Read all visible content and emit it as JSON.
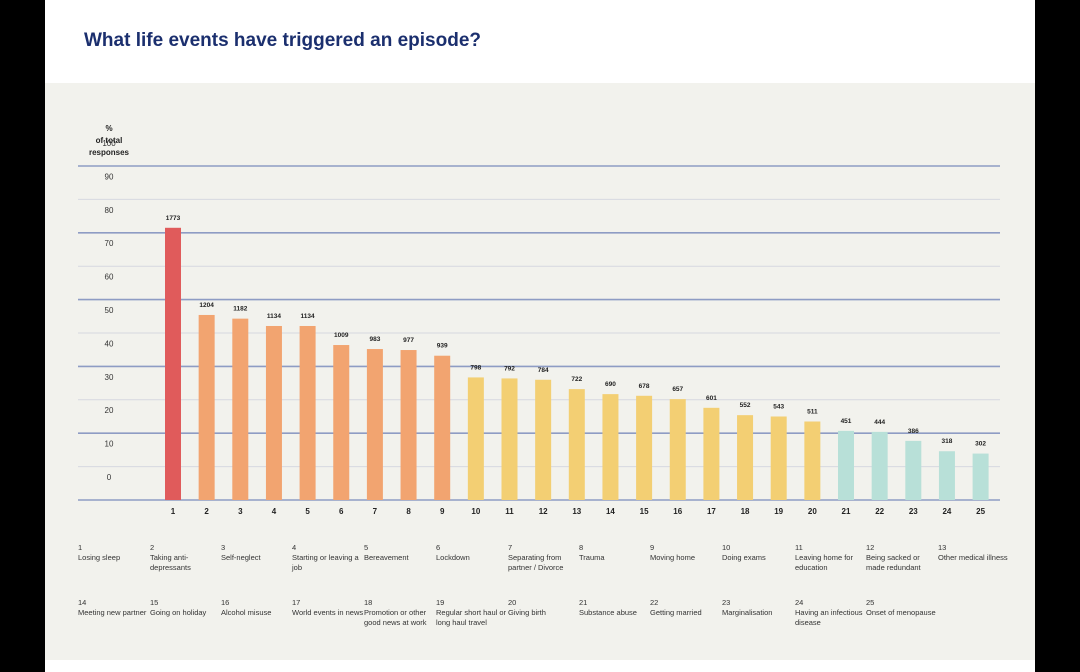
{
  "title": "What life events have triggered an episode?",
  "chart_data": {
    "type": "bar",
    "title": "What life events have triggered an episode?",
    "ylabel": "% of total responses",
    "ylabel_lines": [
      "%",
      "of total",
      "responses"
    ],
    "ylim": [
      0,
      100
    ],
    "yticks": [
      0,
      10,
      20,
      30,
      40,
      50,
      60,
      70,
      80,
      90,
      100
    ],
    "categories": [
      "1",
      "2",
      "3",
      "4",
      "5",
      "6",
      "7",
      "8",
      "9",
      "10",
      "11",
      "12",
      "13",
      "14",
      "15",
      "16",
      "17",
      "18",
      "19",
      "20",
      "21",
      "22",
      "23",
      "24",
      "25"
    ],
    "values": [
      81.5,
      55.4,
      54.3,
      52.1,
      52.1,
      46.4,
      45.2,
      44.9,
      43.2,
      36.7,
      36.4,
      36.0,
      33.2,
      31.7,
      31.2,
      30.2,
      27.6,
      25.4,
      25.0,
      23.5,
      20.7,
      20.4,
      17.7,
      14.6,
      13.9
    ],
    "data_labels": [
      "1773",
      "1204",
      "1182",
      "1134",
      "1134",
      "1009",
      "983",
      "977",
      "939",
      "798",
      "792",
      "784",
      "722",
      "690",
      "678",
      "657",
      "601",
      "552",
      "543",
      "511",
      "451",
      "444",
      "386",
      "318",
      "302"
    ],
    "colors": [
      "#e05b5b",
      "#f2a470",
      "#f2a470",
      "#f2a470",
      "#f2a470",
      "#f2a470",
      "#f2a470",
      "#f2a470",
      "#f2a470",
      "#f3cf73",
      "#f3cf73",
      "#f3cf73",
      "#f3cf73",
      "#f3cf73",
      "#f3cf73",
      "#f3cf73",
      "#f3cf73",
      "#f3cf73",
      "#f3cf73",
      "#f3cf73",
      "#b8e0d8",
      "#b8e0d8",
      "#b8e0d8",
      "#b8e0d8",
      "#b8e0d8"
    ],
    "grid": true
  },
  "legend": [
    {
      "num": "1",
      "label": "Losing sleep"
    },
    {
      "num": "2",
      "label": "Taking anti-depressants"
    },
    {
      "num": "3",
      "label": "Self-neglect"
    },
    {
      "num": "4",
      "label": "Starting or leaving a job"
    },
    {
      "num": "5",
      "label": "Bereavement"
    },
    {
      "num": "6",
      "label": "Lockdown"
    },
    {
      "num": "7",
      "label": "Separating from partner / Divorce"
    },
    {
      "num": "8",
      "label": "Trauma"
    },
    {
      "num": "9",
      "label": "Moving home"
    },
    {
      "num": "10",
      "label": "Doing exams"
    },
    {
      "num": "11",
      "label": "Leaving home for education"
    },
    {
      "num": "12",
      "label": "Being sacked or made redundant"
    },
    {
      "num": "13",
      "label": "Other medical illness"
    },
    {
      "num": "14",
      "label": "Meeting new partner"
    },
    {
      "num": "15",
      "label": "Going on holiday"
    },
    {
      "num": "16",
      "label": "Alcohol misuse"
    },
    {
      "num": "17",
      "label": "World events in news"
    },
    {
      "num": "18",
      "label": "Promotion or other good news at work"
    },
    {
      "num": "19",
      "label": "Regular short haul or long haul travel"
    },
    {
      "num": "20",
      "label": "Giving birth"
    },
    {
      "num": "21",
      "label": "Substance abuse"
    },
    {
      "num": "22",
      "label": "Getting married"
    },
    {
      "num": "23",
      "label": "Marginalisation"
    },
    {
      "num": "24",
      "label": "Having an infectious disease"
    },
    {
      "num": "25",
      "label": "Onset of menopause"
    }
  ]
}
